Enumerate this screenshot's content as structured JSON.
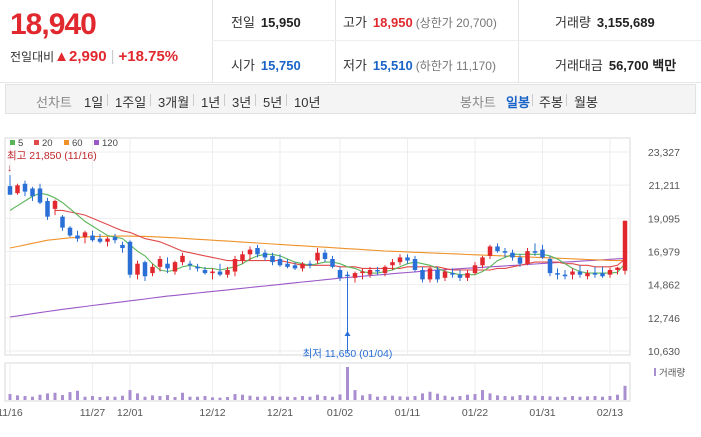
{
  "price": {
    "current": "18,940",
    "change_label": "전일대비",
    "change_arrow": "▲",
    "change": "2,990",
    "change_pct": "+18.75%"
  },
  "summary": {
    "prev_close": {
      "label": "전일",
      "value": "15,950"
    },
    "open": {
      "label": "시가",
      "value": "15,750"
    },
    "high": {
      "label": "고가",
      "value": "18,950",
      "sub": "(상한가 20,700)"
    },
    "low": {
      "label": "저가",
      "value": "15,510",
      "sub": "(하한가 11,170)"
    },
    "volume": {
      "label": "거래량",
      "value": "3,155,689"
    },
    "amount": {
      "label": "거래대금",
      "value": "56,700",
      "unit": "백만"
    }
  },
  "tabs": {
    "line_chart_label": "선차트",
    "line_periods": [
      "1일",
      "1주일",
      "3개월",
      "1년",
      "3년",
      "5년",
      "10년"
    ],
    "candle_chart_label": "봉차트",
    "candle_periods": [
      "일봉",
      "주봉",
      "월봉"
    ],
    "active_candle": "일봉"
  },
  "colors": {
    "up": "#e0282e",
    "down": "#2a6fd6",
    "ma5": "#5ab55a",
    "ma20": "#e04a4a",
    "ma60": "#f0922b",
    "ma120": "#9b59c8",
    "volume": "#a98fd0"
  },
  "chart_data": {
    "type": "candlestick",
    "legend": [
      "5",
      "20",
      "60",
      "120"
    ],
    "y_ticks": [
      "23,327",
      "21,211",
      "19,095",
      "16,979",
      "14,862",
      "12,746",
      "10,630"
    ],
    "ylim": [
      10630,
      23327
    ],
    "x_ticks": [
      "11/16",
      "11/27",
      "12/01",
      "12/12",
      "12/21",
      "01/02",
      "01/11",
      "01/22",
      "01/31",
      "02/13"
    ],
    "x_tick_index": [
      0,
      11,
      16,
      27,
      36,
      44,
      53,
      62,
      71,
      80
    ],
    "annotations": {
      "high": "최고 21,850 (11/16)",
      "low": "최저 11,650 (01/04)"
    },
    "volume_label": "거래량",
    "candles": [
      {
        "o": 21150,
        "h": 21850,
        "l": 20700,
        "c": 20600
      },
      {
        "o": 20700,
        "h": 21300,
        "l": 20600,
        "c": 21200
      },
      {
        "o": 21300,
        "h": 21500,
        "l": 20500,
        "c": 20800
      },
      {
        "o": 21000,
        "h": 21100,
        "l": 20200,
        "c": 20500
      },
      {
        "o": 21000,
        "h": 21300,
        "l": 20000,
        "c": 20100
      },
      {
        "o": 20200,
        "h": 20400,
        "l": 19000,
        "c": 19200
      },
      {
        "o": 19700,
        "h": 20300,
        "l": 19300,
        "c": 20200
      },
      {
        "o": 19200,
        "h": 19300,
        "l": 18300,
        "c": 18500
      },
      {
        "o": 18500,
        "h": 18600,
        "l": 17900,
        "c": 18000
      },
      {
        "o": 18000,
        "h": 18300,
        "l": 17600,
        "c": 17800
      },
      {
        "o": 17900,
        "h": 18300,
        "l": 17500,
        "c": 18200
      },
      {
        "o": 18000,
        "h": 18300,
        "l": 17600,
        "c": 17700
      },
      {
        "o": 17800,
        "h": 18100,
        "l": 17500,
        "c": 17600
      },
      {
        "o": 17600,
        "h": 17900,
        "l": 17300,
        "c": 17800
      },
      {
        "o": 17900,
        "h": 18100,
        "l": 17500,
        "c": 17700
      },
      {
        "o": 17400,
        "h": 17600,
        "l": 16900,
        "c": 17200
      },
      {
        "o": 17600,
        "h": 17700,
        "l": 15300,
        "c": 15500
      },
      {
        "o": 15500,
        "h": 16400,
        "l": 15200,
        "c": 16200
      },
      {
        "o": 16300,
        "h": 16400,
        "l": 15100,
        "c": 15400
      },
      {
        "o": 15600,
        "h": 16200,
        "l": 15400,
        "c": 16000
      },
      {
        "o": 16000,
        "h": 16700,
        "l": 15700,
        "c": 16500
      },
      {
        "o": 16200,
        "h": 16600,
        "l": 15600,
        "c": 15900
      },
      {
        "o": 15700,
        "h": 16400,
        "l": 15500,
        "c": 16300
      },
      {
        "o": 16300,
        "h": 16900,
        "l": 16100,
        "c": 16700
      },
      {
        "o": 16200,
        "h": 16400,
        "l": 15800,
        "c": 16100
      },
      {
        "o": 16000,
        "h": 16200,
        "l": 15700,
        "c": 15900
      },
      {
        "o": 15800,
        "h": 16000,
        "l": 15500,
        "c": 15600
      },
      {
        "o": 15600,
        "h": 15900,
        "l": 15200,
        "c": 15700
      },
      {
        "o": 15700,
        "h": 16200,
        "l": 15400,
        "c": 15500
      },
      {
        "o": 15500,
        "h": 16000,
        "l": 15300,
        "c": 15800
      },
      {
        "o": 15700,
        "h": 16700,
        "l": 15400,
        "c": 16500
      },
      {
        "o": 16400,
        "h": 17000,
        "l": 16200,
        "c": 16800
      },
      {
        "o": 16800,
        "h": 17300,
        "l": 16400,
        "c": 17100
      },
      {
        "o": 17200,
        "h": 17400,
        "l": 16600,
        "c": 16800
      },
      {
        "o": 16900,
        "h": 17100,
        "l": 16400,
        "c": 16600
      },
      {
        "o": 16700,
        "h": 16900,
        "l": 16100,
        "c": 16300
      },
      {
        "o": 16500,
        "h": 16800,
        "l": 16000,
        "c": 16100
      },
      {
        "o": 16200,
        "h": 16500,
        "l": 15900,
        "c": 16000
      },
      {
        "o": 16100,
        "h": 16300,
        "l": 15800,
        "c": 15900
      },
      {
        "o": 15900,
        "h": 16300,
        "l": 15700,
        "c": 16200
      },
      {
        "o": 16200,
        "h": 16400,
        "l": 15900,
        "c": 16100
      },
      {
        "o": 16400,
        "h": 17200,
        "l": 16200,
        "c": 16900
      },
      {
        "o": 16900,
        "h": 17100,
        "l": 16300,
        "c": 16500
      },
      {
        "o": 16500,
        "h": 16700,
        "l": 15900,
        "c": 16000
      },
      {
        "o": 15800,
        "h": 16000,
        "l": 15100,
        "c": 15300
      },
      {
        "o": 15500,
        "h": 15700,
        "l": 11650,
        "c": 15400
      },
      {
        "o": 15300,
        "h": 15700,
        "l": 15000,
        "c": 15600
      },
      {
        "o": 15600,
        "h": 15900,
        "l": 15200,
        "c": 15700
      },
      {
        "o": 15500,
        "h": 16000,
        "l": 15300,
        "c": 15800
      },
      {
        "o": 15800,
        "h": 16000,
        "l": 15500,
        "c": 15700
      },
      {
        "o": 15600,
        "h": 16100,
        "l": 15400,
        "c": 16000
      },
      {
        "o": 16100,
        "h": 16500,
        "l": 15800,
        "c": 16300
      },
      {
        "o": 16300,
        "h": 16800,
        "l": 16100,
        "c": 16600
      },
      {
        "o": 16600,
        "h": 16800,
        "l": 16200,
        "c": 16400
      },
      {
        "o": 16500,
        "h": 16700,
        "l": 15700,
        "c": 15800
      },
      {
        "o": 15800,
        "h": 16000,
        "l": 15000,
        "c": 15200
      },
      {
        "o": 15200,
        "h": 16000,
        "l": 15000,
        "c": 15900
      },
      {
        "o": 15800,
        "h": 16000,
        "l": 15000,
        "c": 15200
      },
      {
        "o": 15300,
        "h": 15900,
        "l": 15100,
        "c": 15700
      },
      {
        "o": 15600,
        "h": 15900,
        "l": 15300,
        "c": 15500
      },
      {
        "o": 15500,
        "h": 15800,
        "l": 15100,
        "c": 15300
      },
      {
        "o": 15300,
        "h": 15800,
        "l": 15100,
        "c": 15600
      },
      {
        "o": 15600,
        "h": 16300,
        "l": 15500,
        "c": 16100
      },
      {
        "o": 16100,
        "h": 16700,
        "l": 15900,
        "c": 16600
      },
      {
        "o": 16700,
        "h": 17400,
        "l": 16500,
        "c": 17300
      },
      {
        "o": 17300,
        "h": 17500,
        "l": 16900,
        "c": 17000
      },
      {
        "o": 17000,
        "h": 17200,
        "l": 16600,
        "c": 16900
      },
      {
        "o": 16900,
        "h": 17100,
        "l": 16400,
        "c": 16600
      },
      {
        "o": 16600,
        "h": 16800,
        "l": 16000,
        "c": 16200
      },
      {
        "o": 16200,
        "h": 17200,
        "l": 16100,
        "c": 17000
      },
      {
        "o": 17000,
        "h": 17500,
        "l": 16700,
        "c": 16900
      },
      {
        "o": 17100,
        "h": 17400,
        "l": 16500,
        "c": 16600
      },
      {
        "o": 16500,
        "h": 16700,
        "l": 15400,
        "c": 15600
      },
      {
        "o": 15600,
        "h": 15900,
        "l": 15200,
        "c": 15500
      },
      {
        "o": 15500,
        "h": 15800,
        "l": 15200,
        "c": 15400
      },
      {
        "o": 15500,
        "h": 15900,
        "l": 15200,
        "c": 15700
      },
      {
        "o": 15700,
        "h": 16100,
        "l": 15300,
        "c": 15500
      },
      {
        "o": 15400,
        "h": 15800,
        "l": 15200,
        "c": 15600
      },
      {
        "o": 15600,
        "h": 16000,
        "l": 15300,
        "c": 15500
      },
      {
        "o": 15600,
        "h": 16000,
        "l": 15300,
        "c": 15400
      },
      {
        "o": 15500,
        "h": 15950,
        "l": 15300,
        "c": 15800
      },
      {
        "o": 15800,
        "h": 16000,
        "l": 15510,
        "c": 15950
      },
      {
        "o": 15750,
        "h": 18950,
        "l": 15510,
        "c": 18940
      }
    ],
    "volumes": [
      0.18,
      0.14,
      0.12,
      0.1,
      0.16,
      0.2,
      0.22,
      0.15,
      0.24,
      0.28,
      0.1,
      0.12,
      0.09,
      0.11,
      0.1,
      0.13,
      0.3,
      0.2,
      0.1,
      0.14,
      0.12,
      0.15,
      0.09,
      0.22,
      0.1,
      0.1,
      0.12,
      0.08,
      0.07,
      0.09,
      0.18,
      0.16,
      0.13,
      0.1,
      0.11,
      0.12,
      0.1,
      0.1,
      0.09,
      0.12,
      0.1,
      0.16,
      0.12,
      0.1,
      0.17,
      1.0,
      0.3,
      0.14,
      0.18,
      0.1,
      0.12,
      0.13,
      0.11,
      0.1,
      0.12,
      0.2,
      0.25,
      0.19,
      0.13,
      0.1,
      0.12,
      0.16,
      0.18,
      0.3,
      0.2,
      0.14,
      0.12,
      0.11,
      0.15,
      0.14,
      0.13,
      0.12,
      0.11,
      0.1,
      0.09,
      0.12,
      0.1,
      0.11,
      0.12,
      0.1,
      0.12,
      0.16,
      0.43
    ],
    "ma": {
      "ma5": [
        19600,
        19900,
        20200,
        20500,
        20700,
        20600,
        20400,
        20100,
        19700,
        19300,
        18900,
        18600,
        18300,
        18000,
        17900,
        17800,
        17400,
        17000,
        16700,
        16200,
        15800,
        15700,
        15800,
        16000,
        16100,
        16000,
        15900,
        15900,
        15800,
        15900,
        16000,
        16200,
        16500,
        16700,
        16800,
        16800,
        16700,
        16500,
        16300,
        16200,
        16100,
        16200,
        16300,
        16300,
        16200,
        16000,
        15900,
        15700,
        15600,
        15600,
        15700,
        15800,
        16000,
        16200,
        16300,
        16200,
        16100,
        15900,
        15700,
        15600,
        15500,
        15500,
        15500,
        15700,
        16000,
        16400,
        16600,
        16800,
        16800,
        16800,
        16800,
        16800,
        16700,
        16500,
        16200,
        15900,
        15700,
        15600,
        15600,
        15600,
        15600,
        15650,
        16200
      ],
      "ma20": [
        null,
        null,
        null,
        null,
        null,
        null,
        19600,
        19600,
        19500,
        19400,
        19300,
        19100,
        18900,
        18700,
        18500,
        18300,
        18200,
        18000,
        17800,
        17700,
        17600,
        17400,
        17200,
        17000,
        16900,
        16800,
        16700,
        16600,
        16500,
        16400,
        16400,
        16400,
        16400,
        16400,
        16400,
        16400,
        16400,
        16300,
        16200,
        16100,
        16100,
        16100,
        16100,
        16100,
        16000,
        16000,
        16000,
        15900,
        15900,
        15900,
        15900,
        15900,
        15900,
        16000,
        16000,
        16000,
        16000,
        16000,
        15900,
        15800,
        15800,
        15800,
        15800,
        15800,
        15800,
        15900,
        15900,
        16000,
        16100,
        16200,
        16300,
        16300,
        16300,
        16300,
        16200,
        16200,
        16100,
        16100,
        16000,
        16000,
        16000,
        16100,
        16500
      ],
      "ma60": [
        17200,
        17300,
        17400,
        17500,
        17600,
        17700,
        17750,
        17800,
        17850,
        17880,
        17900,
        17920,
        17940,
        17950,
        17960,
        17970,
        17960,
        17950,
        17940,
        17920,
        17900,
        17880,
        17850,
        17820,
        17790,
        17760,
        17730,
        17700,
        17670,
        17640,
        17610,
        17580,
        17550,
        17520,
        17490,
        17460,
        17430,
        17400,
        17370,
        17340,
        17310,
        17280,
        17250,
        17220,
        17190,
        17160,
        17130,
        17100,
        17070,
        17040,
        17010,
        16990,
        16970,
        16950,
        16930,
        16910,
        16890,
        16870,
        16850,
        16830,
        16810,
        16790,
        16770,
        16750,
        16730,
        16710,
        16690,
        16670,
        16650,
        16630,
        16610,
        16590,
        16570,
        16550,
        16530,
        16510,
        16490,
        16470,
        16450,
        16430,
        16410,
        16400,
        16420
      ],
      "ma120": [
        12800,
        12870,
        12940,
        13010,
        13080,
        13150,
        13220,
        13290,
        13350,
        13410,
        13470,
        13530,
        13590,
        13650,
        13710,
        13770,
        13830,
        13890,
        13950,
        14010,
        14070,
        14130,
        14180,
        14230,
        14280,
        14330,
        14380,
        14430,
        14480,
        14530,
        14580,
        14630,
        14680,
        14730,
        14780,
        14830,
        14880,
        14930,
        14980,
        15030,
        15080,
        15130,
        15180,
        15230,
        15280,
        15320,
        15360,
        15400,
        15440,
        15480,
        15520,
        15560,
        15600,
        15640,
        15680,
        15720,
        15760,
        15790,
        15820,
        15850,
        15880,
        15910,
        15940,
        15970,
        16000,
        16030,
        16060,
        16090,
        16120,
        16150,
        16180,
        16210,
        16240,
        16270,
        16300,
        16330,
        16360,
        16390,
        16420,
        16450,
        16480,
        16510,
        16540
      ]
    }
  }
}
